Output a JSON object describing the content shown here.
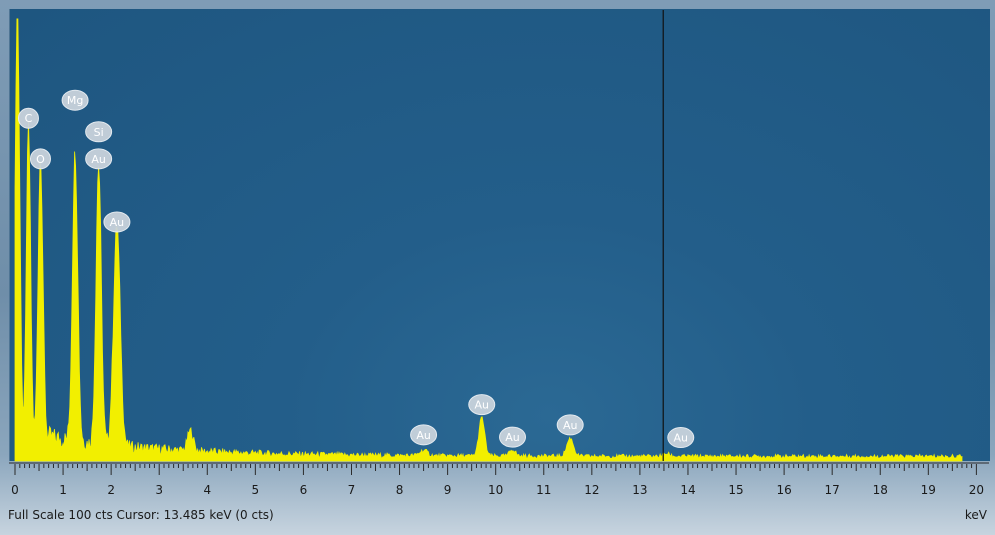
{
  "chart_data": {
    "type": "line",
    "title": "",
    "xlabel": "keV",
    "ylabel": "",
    "xlim": [
      0,
      20.2
    ],
    "ylim": [
      0,
      100
    ],
    "grid": false,
    "legend": "none",
    "colors": {
      "spectrum": "#f2ef00",
      "background": "#1f5883",
      "cursor": "#101010",
      "label_bubble": "#c9d3dc"
    },
    "x_ticks": [
      0,
      1,
      2,
      3,
      4,
      5,
      6,
      7,
      8,
      9,
      10,
      11,
      12,
      13,
      14,
      15,
      16,
      17,
      18,
      19,
      20
    ],
    "x_tick_labels": [
      "0",
      "1",
      "2",
      "3",
      "4",
      "5",
      "6",
      "7",
      "8",
      "9",
      "10",
      "11",
      "12",
      "13",
      "14",
      "15",
      "16",
      "17",
      "18",
      "19",
      "20"
    ],
    "series": [
      {
        "peaks": [
          {
            "x": 0.05,
            "y": 100,
            "w": 0.05
          },
          {
            "x": 0.28,
            "y": 72,
            "w": 0.045
          },
          {
            "x": 0.53,
            "y": 63,
            "w": 0.05
          },
          {
            "x": 1.25,
            "y": 64,
            "w": 0.055
          },
          {
            "x": 1.74,
            "y": 62,
            "w": 0.055
          },
          {
            "x": 2.12,
            "y": 49,
            "w": 0.07
          },
          {
            "x": 3.65,
            "y": 4.5,
            "w": 0.06
          },
          {
            "x": 8.5,
            "y": 1.2,
            "w": 0.08
          },
          {
            "x": 9.71,
            "y": 8.5,
            "w": 0.06
          },
          {
            "x": 10.35,
            "y": 1.5,
            "w": 0.06
          },
          {
            "x": 11.55,
            "y": 4.0,
            "w": 0.07
          },
          {
            "x": 13.55,
            "y": 0.6,
            "w": 0.07
          }
        ],
        "baseline": {
          "x0": 0.6,
          "y0": 5.5,
          "decay": 0.42,
          "floor": 1.0
        }
      }
    ],
    "annotations": [
      {
        "text": "C",
        "x": 0.28,
        "y": 76
      },
      {
        "text": "Mg",
        "x": 1.25,
        "y": 80
      },
      {
        "text": "Si",
        "x": 1.74,
        "y": 73
      },
      {
        "text": "O",
        "x": 0.53,
        "y": 67
      },
      {
        "text": "Au",
        "x": 1.74,
        "y": 67
      },
      {
        "text": "Au",
        "x": 2.12,
        "y": 53
      },
      {
        "text": "Au",
        "x": 8.5,
        "y": 5.8
      },
      {
        "text": "Au",
        "x": 9.71,
        "y": 12.5
      },
      {
        "text": "Au",
        "x": 10.35,
        "y": 5.3
      },
      {
        "text": "Au",
        "x": 11.55,
        "y": 8.0
      },
      {
        "text": "Au",
        "x": 13.85,
        "y": 5.2
      }
    ],
    "cursor_x": 13.485
  },
  "footer": {
    "left_text": "Full Scale 100 cts  Cursor: 13.485 keV (0 cts)",
    "unit": "keV"
  }
}
